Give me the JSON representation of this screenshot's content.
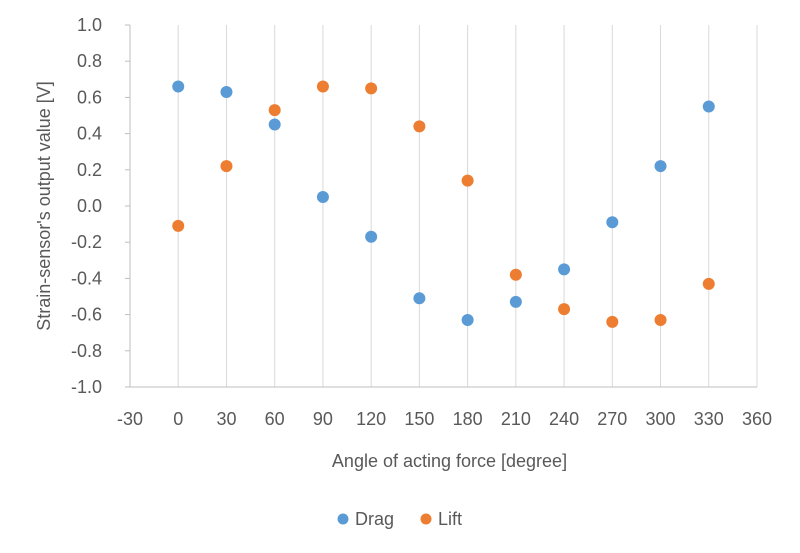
{
  "chart_data": {
    "type": "scatter",
    "title": "",
    "xlabel": "Angle of acting force [degree]",
    "ylabel": "Strain-sensor's output value [V]",
    "xlim": [
      -30,
      360
    ],
    "ylim": [
      -1.0,
      1.0
    ],
    "x_ticks": [
      "-30",
      "0",
      "30",
      "60",
      "90",
      "120",
      "150",
      "180",
      "210",
      "240",
      "270",
      "300",
      "330",
      "360"
    ],
    "y_ticks": [
      "1.0",
      "0.8",
      "0.6",
      "0.4",
      "0.2",
      "0.0",
      "-0.2",
      "-0.4",
      "-0.6",
      "-0.8",
      "-1.0"
    ],
    "grid": "vertical",
    "legend_position": "bottom",
    "series": [
      {
        "name": "Drag",
        "color": "#5b9bd5",
        "points": [
          {
            "x": 0,
            "y": 0.66
          },
          {
            "x": 30,
            "y": 0.63
          },
          {
            "x": 60,
            "y": 0.45
          },
          {
            "x": 90,
            "y": 0.05
          },
          {
            "x": 120,
            "y": -0.17
          },
          {
            "x": 150,
            "y": -0.51
          },
          {
            "x": 180,
            "y": -0.63
          },
          {
            "x": 210,
            "y": -0.53
          },
          {
            "x": 240,
            "y": -0.35
          },
          {
            "x": 270,
            "y": -0.09
          },
          {
            "x": 300,
            "y": 0.22
          },
          {
            "x": 330,
            "y": 0.55
          }
        ]
      },
      {
        "name": "Lift",
        "color": "#ed7d31",
        "points": [
          {
            "x": 0,
            "y": -0.11
          },
          {
            "x": 30,
            "y": 0.22
          },
          {
            "x": 60,
            "y": 0.53
          },
          {
            "x": 90,
            "y": 0.66
          },
          {
            "x": 120,
            "y": 0.65
          },
          {
            "x": 150,
            "y": 0.44
          },
          {
            "x": 180,
            "y": 0.14
          },
          {
            "x": 210,
            "y": -0.38
          },
          {
            "x": 240,
            "y": -0.57
          },
          {
            "x": 270,
            "y": -0.64
          },
          {
            "x": 300,
            "y": -0.63
          },
          {
            "x": 330,
            "y": -0.43
          }
        ]
      }
    ]
  }
}
